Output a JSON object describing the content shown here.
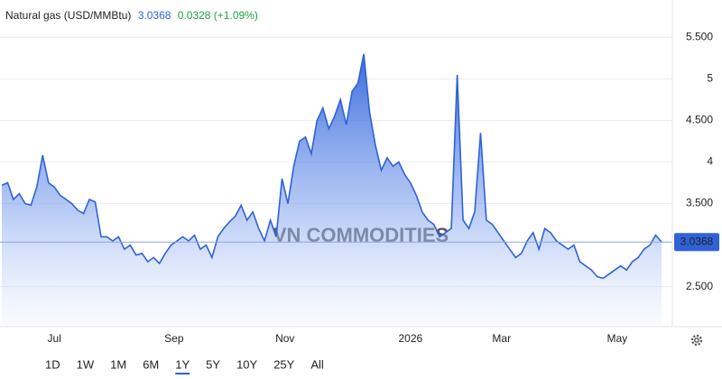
{
  "header": {
    "title": "Natural gas (USD/MMBtu)",
    "price": 3.0368,
    "change": "0.0328 (+1.09%)"
  },
  "chart_data": {
    "type": "area",
    "values": [
      3.72,
      3.75,
      3.55,
      3.62,
      3.5,
      3.48,
      3.7,
      4.08,
      3.75,
      3.7,
      3.6,
      3.55,
      3.5,
      3.42,
      3.38,
      3.55,
      3.52,
      3.1,
      3.1,
      3.05,
      3.1,
      2.95,
      3.0,
      2.88,
      2.9,
      2.8,
      2.85,
      2.78,
      2.9,
      3.0,
      3.05,
      3.1,
      3.05,
      3.12,
      2.95,
      3.0,
      2.85,
      3.1,
      3.2,
      3.28,
      3.35,
      3.48,
      3.3,
      3.4,
      3.2,
      3.05,
      3.3,
      3.1,
      3.8,
      3.5,
      3.95,
      4.25,
      4.3,
      4.1,
      4.5,
      4.65,
      4.4,
      4.55,
      4.75,
      4.45,
      4.85,
      4.95,
      5.3,
      4.6,
      4.2,
      3.9,
      4.05,
      3.95,
      4.0,
      3.85,
      3.75,
      3.6,
      3.4,
      3.3,
      3.25,
      3.1,
      3.15,
      3.2,
      5.05,
      3.3,
      3.2,
      3.4,
      4.35,
      3.3,
      3.25,
      3.15,
      3.05,
      2.95,
      2.85,
      2.9,
      3.05,
      3.15,
      2.95,
      3.2,
      3.15,
      3.05,
      3.0,
      2.95,
      3.0,
      2.8,
      2.75,
      2.7,
      2.62,
      2.6,
      2.65,
      2.7,
      2.75,
      2.7,
      2.8,
      2.85,
      2.95,
      3.0,
      3.12,
      3.0368
    ],
    "color": "#2f62d8",
    "xlim": [
      0,
      113
    ],
    "xticks": [
      {
        "value": 9,
        "label": "Jul"
      },
      {
        "value": 29.5,
        "label": "Sep"
      },
      {
        "value": 48.5,
        "label": "Nov"
      },
      {
        "value": 70,
        "label": "2026"
      },
      {
        "value": 85.6,
        "label": "Mar"
      },
      {
        "value": 105.4,
        "label": "May"
      }
    ],
    "ylim": [
      2.04,
      5.95
    ],
    "yticks": [
      {
        "value": 2.5,
        "label": "2.500"
      },
      {
        "value": 3.5,
        "label": "3.500"
      },
      4,
      {
        "value": 4.5,
        "label": "4.500"
      },
      5,
      {
        "value": 5.5,
        "label": "5.500"
      }
    ],
    "last_price": 3.0368,
    "grid": true,
    "watermark": "VN COMMODITIES"
  },
  "range_buttons": [
    "1D",
    "1W",
    "1M",
    "6M",
    "1Y",
    "5Y",
    "10Y",
    "25Y",
    "All"
  ],
  "active_range": "1Y"
}
